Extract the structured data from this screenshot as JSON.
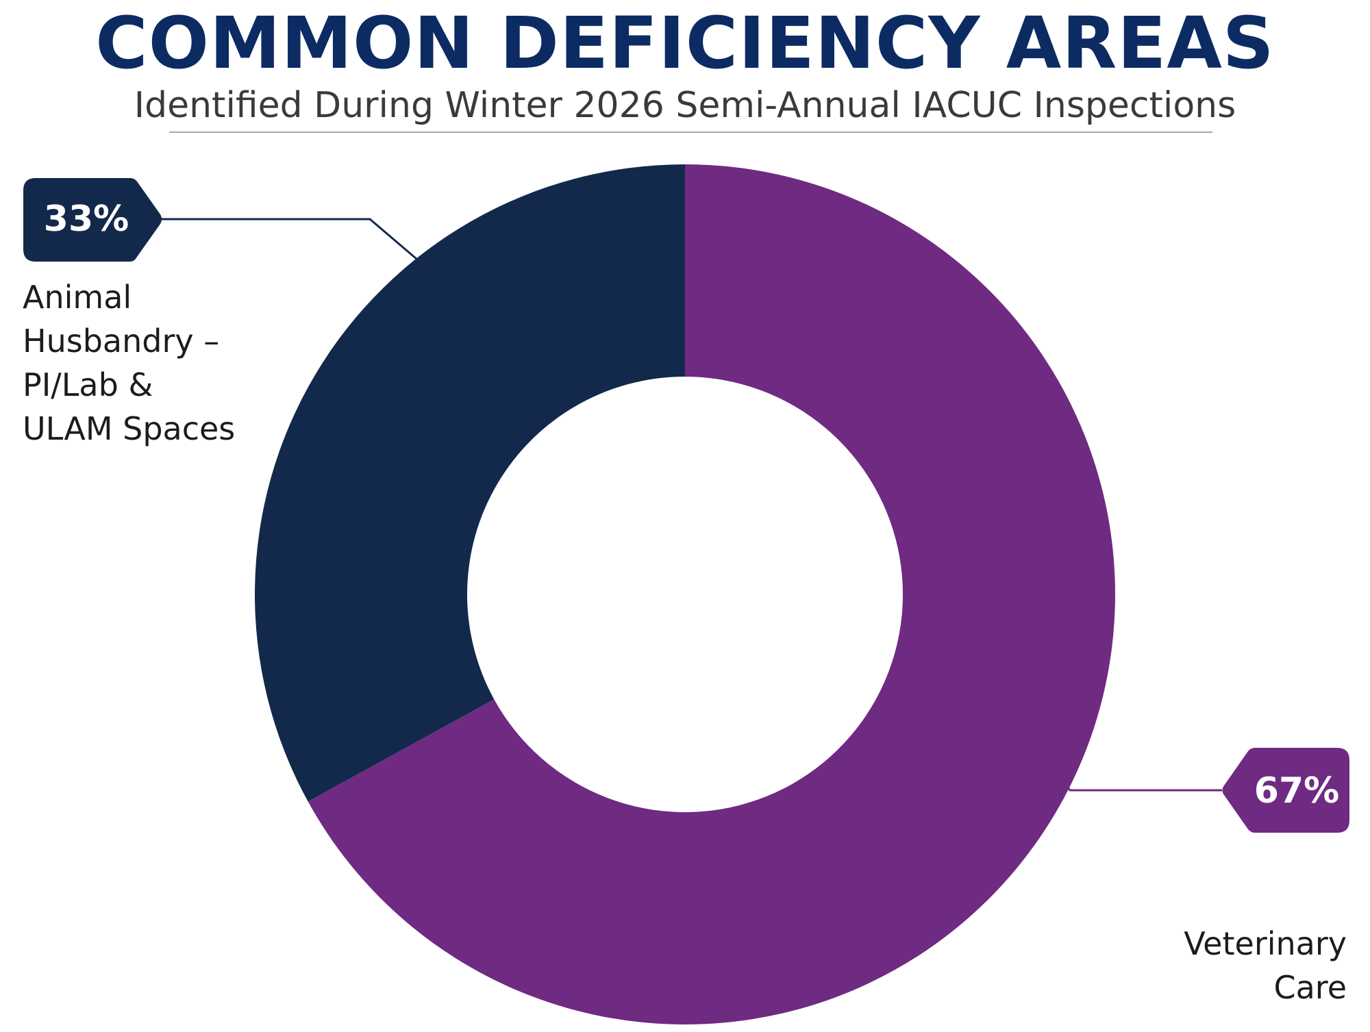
{
  "header": {
    "title": "COMMON DEFICIENCY AREAS",
    "subtitle": "Identified During Winter 2026 Semi-Annual IACUC Inspections"
  },
  "chart_data": {
    "type": "pie",
    "variant": "donut",
    "title": "COMMON DEFICIENCY AREAS",
    "subtitle": "Identified During Winter 2026 Semi-Annual IACUC Inspections",
    "categories": [
      "Animal Husbandry – PI/Lab & ULAM Spaces",
      "Veterinary Care"
    ],
    "values": [
      33,
      67
    ],
    "unit": "%",
    "series": [
      {
        "name": "Animal Husbandry – PI/Lab & ULAM Spaces",
        "value": 33,
        "label": "33%",
        "label_lines": [
          "Animal",
          "Husbandry –",
          "PI/Lab &",
          "ULAM Spaces"
        ],
        "color": "#13294b"
      },
      {
        "name": "Veterinary Care",
        "value": 67,
        "label": "67%",
        "label_lines": [
          "Veterinary",
          "Care"
        ],
        "color": "#6f2a82"
      }
    ],
    "legend": "none",
    "start": "top",
    "direction": "clockwise"
  },
  "colors": {
    "title": "#0d2b63",
    "subtitle": "#3a3a3a",
    "divider": "#a8a8a8",
    "label_text": "#1c1c1c"
  }
}
